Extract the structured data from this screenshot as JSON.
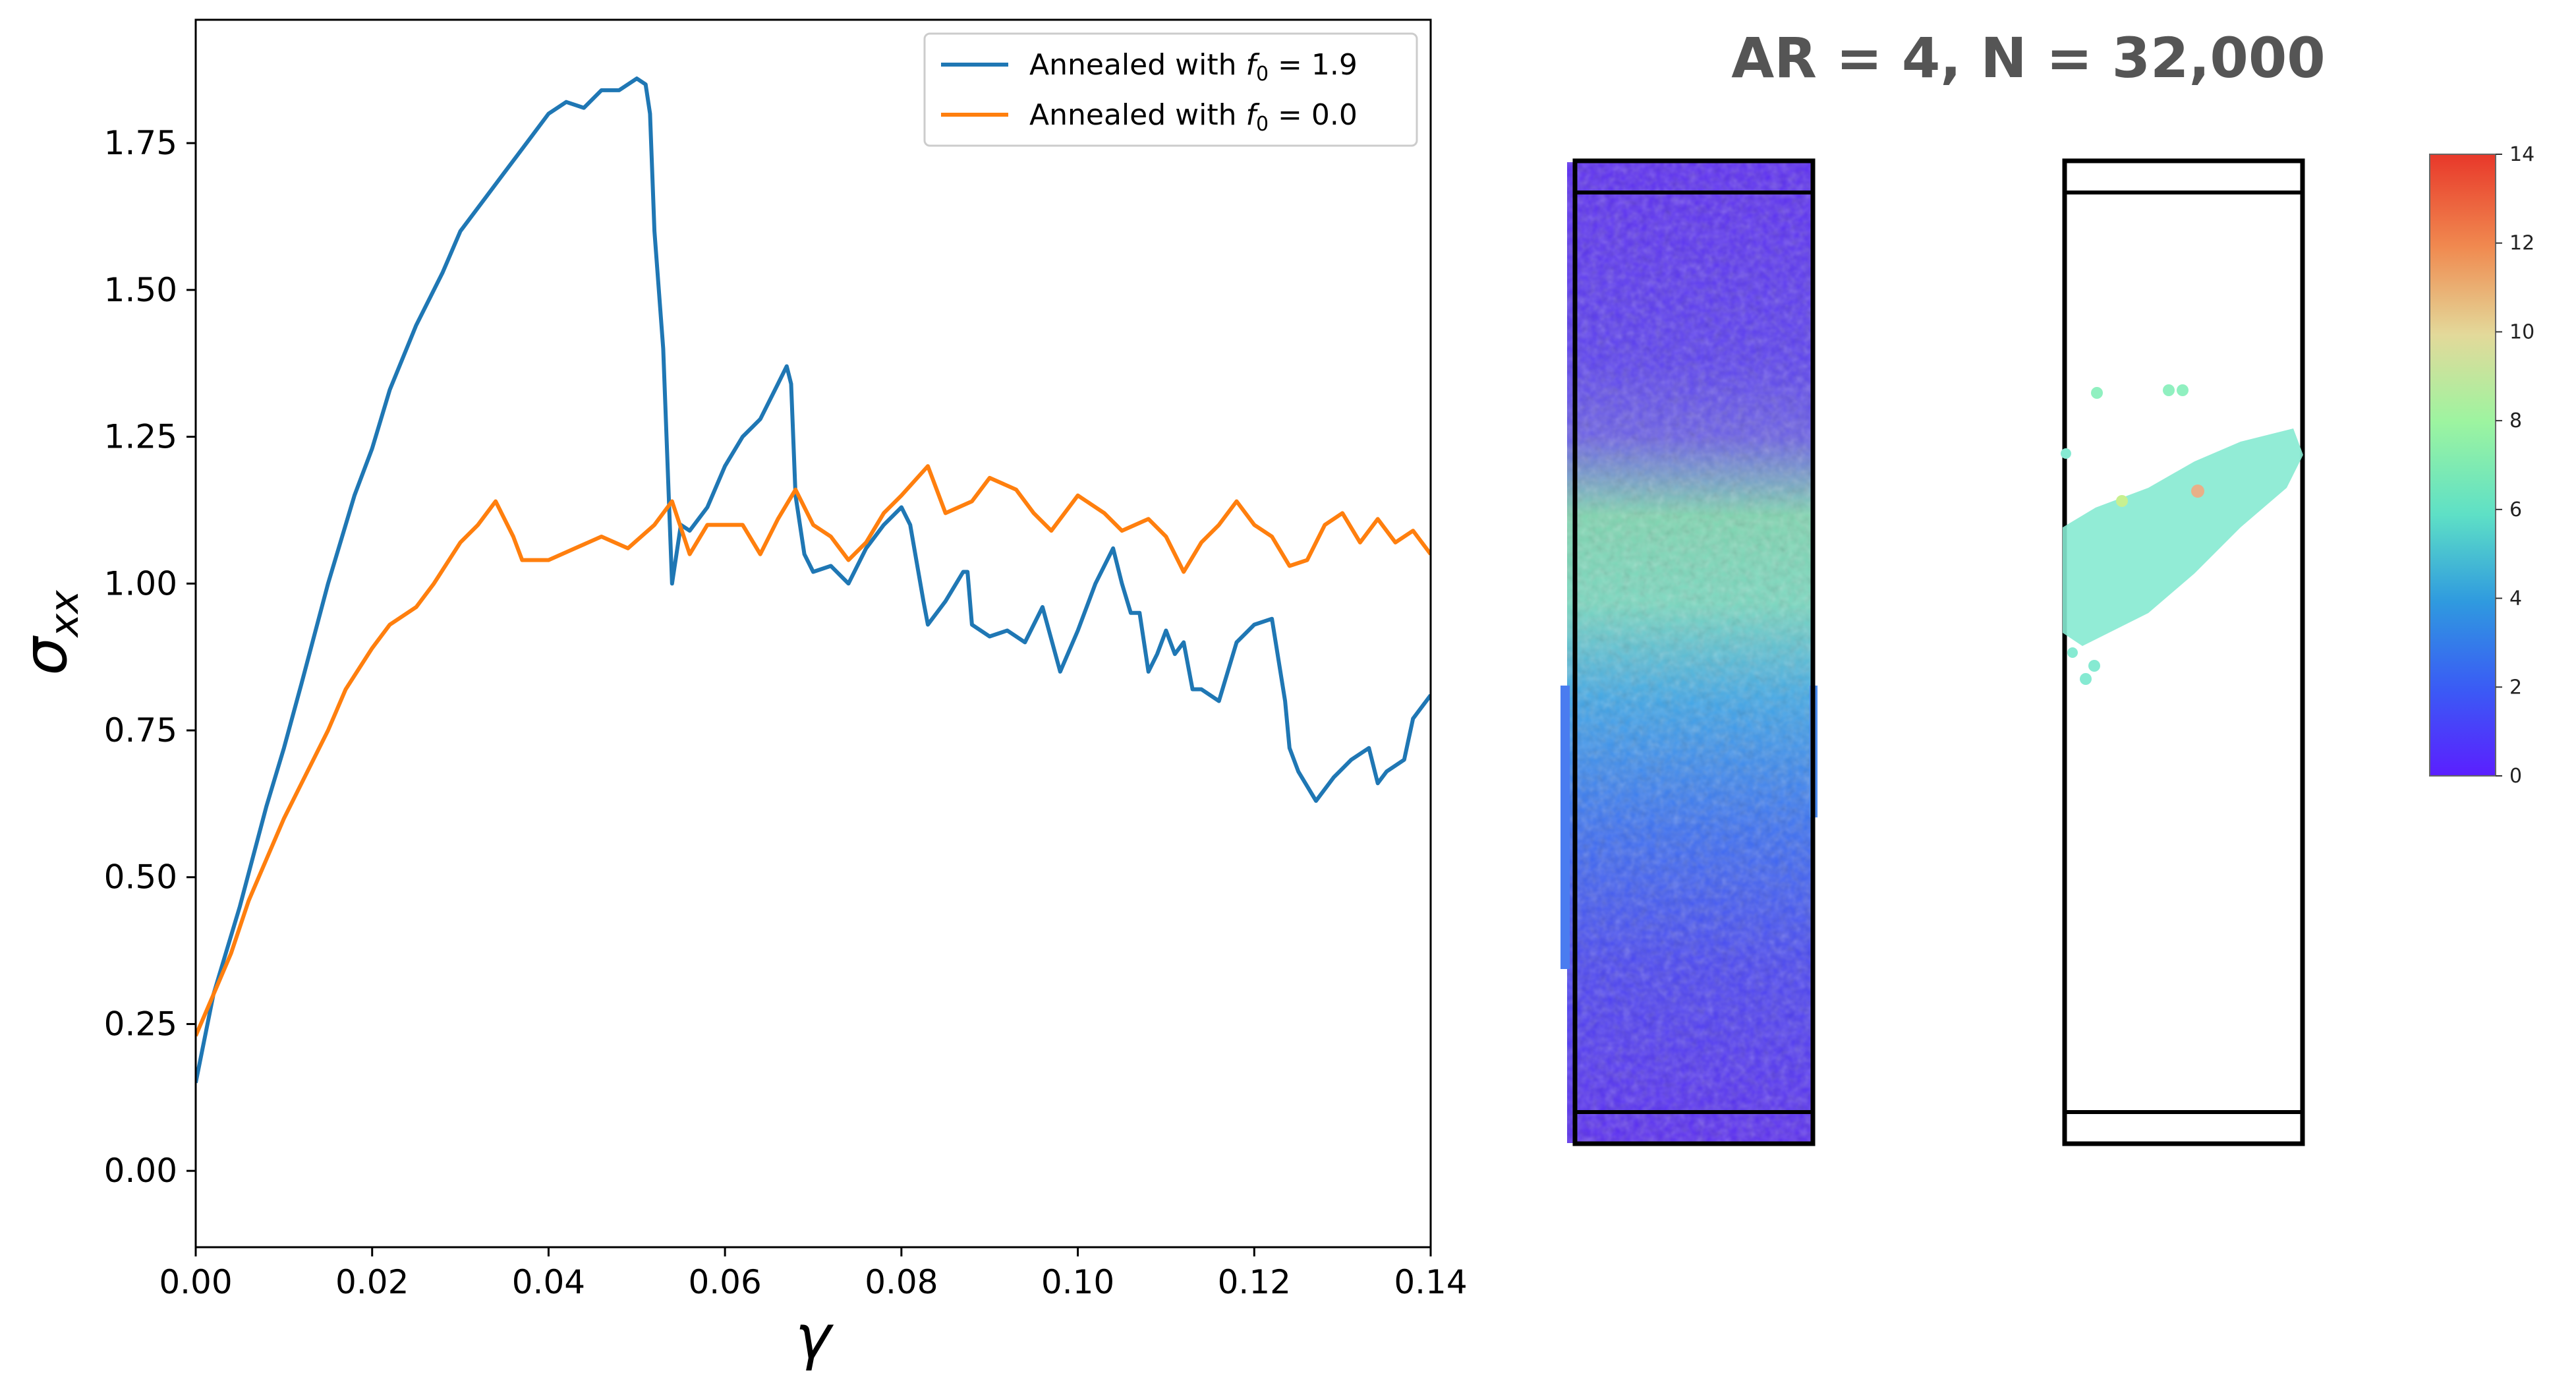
{
  "chart_data": {
    "type": "line",
    "xlabel": "γ",
    "ylabel_main": "σ",
    "ylabel_sub": "xx",
    "xlim": [
      0.0,
      0.14
    ],
    "ylim": [
      -0.13,
      1.96
    ],
    "xticks": [
      0.0,
      0.02,
      0.04,
      0.06,
      0.08,
      0.1,
      0.12,
      0.14
    ],
    "xtick_labels": [
      "0.00",
      "0.02",
      "0.04",
      "0.06",
      "0.08",
      "0.10",
      "0.12",
      "0.14"
    ],
    "yticks": [
      0.0,
      0.25,
      0.5,
      0.75,
      1.0,
      1.25,
      1.5,
      1.75
    ],
    "ytick_labels": [
      "0.00",
      "0.25",
      "0.50",
      "0.75",
      "1.00",
      "1.25",
      "1.50",
      "1.75"
    ],
    "legend_placement": "top-right",
    "series": [
      {
        "name_prefix": "Annealed with ",
        "name_var": "f",
        "name_sub": "0",
        "name_suffix": " = 1.9",
        "color": "#1f77b4",
        "x": [
          0.0,
          0.002,
          0.005,
          0.008,
          0.01,
          0.012,
          0.015,
          0.018,
          0.02,
          0.022,
          0.025,
          0.028,
          0.03,
          0.033,
          0.035,
          0.038,
          0.04,
          0.042,
          0.044,
          0.046,
          0.048,
          0.05,
          0.051,
          0.0515,
          0.052,
          0.053,
          0.054,
          0.055,
          0.056,
          0.058,
          0.06,
          0.062,
          0.064,
          0.066,
          0.067,
          0.0675,
          0.068,
          0.069,
          0.07,
          0.072,
          0.074,
          0.076,
          0.078,
          0.08,
          0.081,
          0.0825,
          0.083,
          0.085,
          0.087,
          0.0875,
          0.088,
          0.09,
          0.092,
          0.094,
          0.096,
          0.098,
          0.1,
          0.102,
          0.104,
          0.105,
          0.106,
          0.107,
          0.108,
          0.109,
          0.11,
          0.111,
          0.112,
          0.113,
          0.114,
          0.116,
          0.118,
          0.12,
          0.122,
          0.1235,
          0.124,
          0.125,
          0.127,
          0.129,
          0.131,
          0.133,
          0.134,
          0.135,
          0.137,
          0.138,
          0.14
        ],
        "y": [
          0.15,
          0.3,
          0.45,
          0.62,
          0.72,
          0.83,
          1.0,
          1.15,
          1.23,
          1.33,
          1.44,
          1.53,
          1.6,
          1.66,
          1.7,
          1.76,
          1.8,
          1.82,
          1.81,
          1.84,
          1.84,
          1.86,
          1.85,
          1.8,
          1.6,
          1.4,
          1.0,
          1.1,
          1.09,
          1.13,
          1.2,
          1.25,
          1.28,
          1.34,
          1.37,
          1.34,
          1.15,
          1.05,
          1.02,
          1.03,
          1.0,
          1.06,
          1.1,
          1.13,
          1.1,
          0.97,
          0.93,
          0.97,
          1.02,
          1.02,
          0.93,
          0.91,
          0.92,
          0.9,
          0.96,
          0.85,
          0.92,
          1.0,
          1.06,
          1.0,
          0.95,
          0.95,
          0.85,
          0.88,
          0.92,
          0.88,
          0.9,
          0.82,
          0.82,
          0.8,
          0.9,
          0.93,
          0.94,
          0.8,
          0.72,
          0.68,
          0.63,
          0.67,
          0.7,
          0.72,
          0.66,
          0.68,
          0.7,
          0.77,
          0.81
        ]
      },
      {
        "name_prefix": "Annealed with ",
        "name_var": "f",
        "name_sub": "0",
        "name_suffix": " = 0.0",
        "color": "#ff7f0e",
        "x": [
          0.0,
          0.002,
          0.004,
          0.006,
          0.008,
          0.01,
          0.012,
          0.015,
          0.017,
          0.02,
          0.022,
          0.025,
          0.027,
          0.03,
          0.032,
          0.034,
          0.036,
          0.037,
          0.04,
          0.043,
          0.046,
          0.049,
          0.052,
          0.054,
          0.056,
          0.058,
          0.06,
          0.062,
          0.064,
          0.066,
          0.068,
          0.07,
          0.072,
          0.074,
          0.076,
          0.078,
          0.08,
          0.083,
          0.085,
          0.088,
          0.09,
          0.093,
          0.095,
          0.097,
          0.1,
          0.103,
          0.105,
          0.108,
          0.11,
          0.112,
          0.114,
          0.116,
          0.118,
          0.12,
          0.122,
          0.124,
          0.126,
          0.128,
          0.13,
          0.132,
          0.134,
          0.136,
          0.138,
          0.14
        ],
        "y": [
          0.23,
          0.3,
          0.37,
          0.46,
          0.53,
          0.6,
          0.66,
          0.75,
          0.82,
          0.89,
          0.93,
          0.96,
          1.0,
          1.07,
          1.1,
          1.14,
          1.08,
          1.04,
          1.04,
          1.06,
          1.08,
          1.06,
          1.1,
          1.14,
          1.05,
          1.1,
          1.1,
          1.1,
          1.05,
          1.11,
          1.16,
          1.1,
          1.08,
          1.04,
          1.07,
          1.12,
          1.15,
          1.2,
          1.12,
          1.14,
          1.18,
          1.16,
          1.12,
          1.09,
          1.15,
          1.12,
          1.09,
          1.11,
          1.08,
          1.02,
          1.07,
          1.1,
          1.14,
          1.1,
          1.08,
          1.03,
          1.04,
          1.1,
          1.12,
          1.07,
          1.11,
          1.07,
          1.09,
          1.05
        ]
      }
    ]
  },
  "simulation_panel": {
    "title": "AR = 4, N = 32,000",
    "colorbar_ticks": [
      "0",
      "2",
      "4",
      "6",
      "8",
      "10",
      "12",
      "14"
    ]
  }
}
